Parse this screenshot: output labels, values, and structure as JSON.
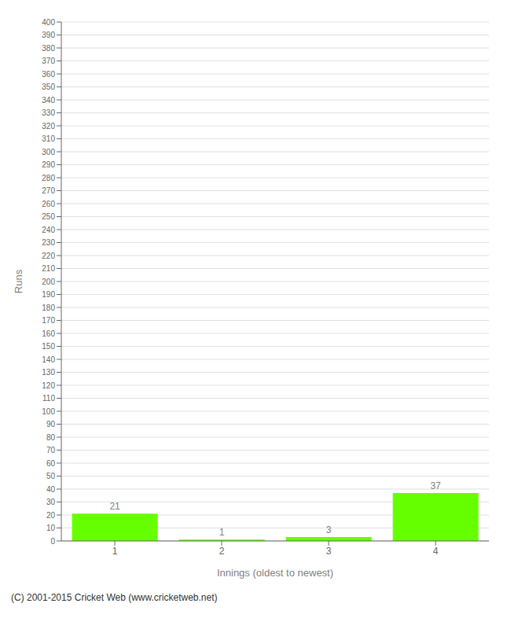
{
  "chart_data": {
    "type": "bar",
    "categories": [
      "1",
      "2",
      "3",
      "4"
    ],
    "values": [
      21,
      1,
      3,
      37
    ],
    "color": "#66ff00",
    "xlabel": "Innings (oldest to newest)",
    "ylabel": "Runs",
    "ylim": [
      0,
      400
    ],
    "yticks": [
      0,
      10,
      20,
      30,
      40,
      50,
      60,
      70,
      80,
      90,
      100,
      110,
      120,
      130,
      140,
      150,
      160,
      170,
      180,
      190,
      200,
      210,
      220,
      230,
      240,
      250,
      260,
      270,
      280,
      290,
      300,
      310,
      320,
      330,
      340,
      350,
      360,
      370,
      380,
      390,
      400
    ],
    "grid": true,
    "data_labels": true,
    "annotation": "(C) 2001-2015 Cricket Web (www.cricketweb.net)"
  }
}
